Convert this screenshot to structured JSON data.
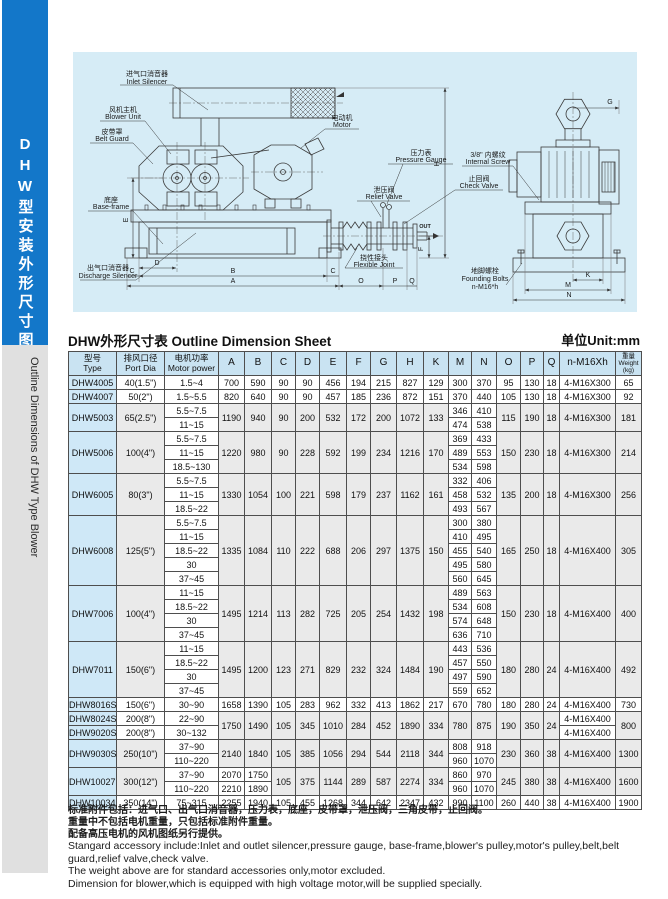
{
  "sidebar": {
    "title_cn": "DHW型安装外形尺寸图",
    "title_en": "Outline Dimensions of DHW Type Blower"
  },
  "sheet": {
    "title": "DHW外形尺寸表 Outline Dimension Sheet",
    "unit": "单位Unit:mm"
  },
  "diagram": {
    "labels": {
      "inlet_cn": "进气口消音器",
      "inlet_en": "Inlet Silencer",
      "blower_cn": "风机主机",
      "blower_en": "Blower Unit",
      "belt_cn": "皮带罩",
      "belt_en": "Belt Guard",
      "motor_cn": "电动机",
      "motor_en": "Motor",
      "gauge_cn": "压力表",
      "gauge_en": "Pressure Gauge",
      "relief_cn": "泄压阀",
      "relief_en": "Relief Valve",
      "check_cn": "止回阀",
      "check_en": "Check Valve",
      "base_cn": "底座",
      "base_en": "Base-frame",
      "discharge_cn": "出气口消音器",
      "discharge_en": "Discharge Silencer",
      "flex_cn": "挠性接头",
      "flex_en": "Flexible Joint",
      "screw_cn": "3/8\" 内螺纹",
      "screw_en": "Internal Screw",
      "bolts_cn": "地脚螺栓",
      "bolts_en": "Founding Bolts",
      "bolts_spec": "n-M16*h",
      "out": "OUT"
    },
    "dims": {
      "A": "A",
      "B": "B",
      "C": "C",
      "D": "D",
      "E": "E",
      "F": "F",
      "G": "G",
      "H": "H",
      "K": "K",
      "M": "M",
      "N": "N",
      "O": "O",
      "P": "P",
      "Q": "Q"
    }
  },
  "table": {
    "headers": [
      [
        "型号",
        "Type"
      ],
      [
        "排风口径",
        "Port Dia"
      ],
      [
        "电机功率",
        "Motor power"
      ],
      [
        "A"
      ],
      [
        "B"
      ],
      [
        "C"
      ],
      [
        "D"
      ],
      [
        "E"
      ],
      [
        "F"
      ],
      [
        "G"
      ],
      [
        "H"
      ],
      [
        "K"
      ],
      [
        "M"
      ],
      [
        "N"
      ],
      [
        "O"
      ],
      [
        "P"
      ],
      [
        "Q"
      ],
      [
        "n-M16Xh"
      ],
      [
        "重量",
        "Weight",
        "(kg)"
      ]
    ],
    "groups": [
      {
        "rows": [
          {
            "model": "DHW4005",
            "port": "40(1.5\")",
            "power": "1.5~4",
            "M": "300",
            "N": "370"
          }
        ],
        "shared": {
          "A": "700",
          "B": "590",
          "C": "90",
          "D": "90",
          "E": "456",
          "F": "194",
          "G": "215",
          "H": "827",
          "K": "129",
          "O": "95",
          "P": "130",
          "Q": "18",
          "bolts": "4-M16X300",
          "weight": "65"
        }
      },
      {
        "rows": [
          {
            "model": "DHW4007",
            "port": "50(2\")",
            "power": "1.5~5.5",
            "M": "370",
            "N": "440"
          }
        ],
        "shared": {
          "A": "820",
          "B": "640",
          "C": "90",
          "D": "90",
          "E": "457",
          "F": "185",
          "G": "236",
          "H": "872",
          "K": "151",
          "O": "105",
          "P": "130",
          "Q": "18",
          "bolts": "4-M16X300",
          "weight": "92"
        }
      },
      {
        "rows": [
          {
            "power": "5.5~7.5",
            "M": "346",
            "N": "410"
          },
          {
            "power": "11~15",
            "M": "474",
            "N": "538"
          }
        ],
        "shared": {
          "model": "DHW5003",
          "port": "65(2.5\")",
          "A": "1190",
          "B": "940",
          "C": "90",
          "D": "200",
          "E": "532",
          "F": "172",
          "G": "200",
          "H": "1072",
          "K": "133",
          "O": "115",
          "P": "190",
          "Q": "18",
          "bolts": "4-M16X300",
          "weight": "181"
        }
      },
      {
        "rows": [
          {
            "power": "5.5~7.5",
            "M": "369",
            "N": "433"
          },
          {
            "power": "11~15",
            "M": "489",
            "N": "553"
          },
          {
            "power": "18.5~130",
            "M": "534",
            "N": "598"
          }
        ],
        "shared": {
          "model": "DHW5006",
          "port": "100(4\")",
          "A": "1220",
          "B": "980",
          "C": "90",
          "D": "228",
          "E": "592",
          "F": "199",
          "G": "234",
          "H": "1216",
          "K": "170",
          "O": "150",
          "P": "230",
          "Q": "18",
          "bolts": "4-M16X300",
          "weight": "214"
        }
      },
      {
        "rows": [
          {
            "power": "5.5~7.5",
            "M": "332",
            "N": "406"
          },
          {
            "power": "11~15",
            "M": "458",
            "N": "532"
          },
          {
            "power": "18.5~22",
            "M": "493",
            "N": "567"
          }
        ],
        "shared": {
          "model": "DHW6005",
          "port": "80(3\")",
          "A": "1330",
          "B": "1054",
          "C": "100",
          "D": "221",
          "E": "598",
          "F": "179",
          "G": "237",
          "H": "1162",
          "K": "161",
          "O": "135",
          "P": "200",
          "Q": "18",
          "bolts": "4-M16X300",
          "weight": "256"
        }
      },
      {
        "rows": [
          {
            "power": "5.5~7.5",
            "M": "300",
            "N": "380"
          },
          {
            "power": "11~15",
            "M": "410",
            "N": "495"
          },
          {
            "power": "18.5~22",
            "M": "455",
            "N": "540"
          },
          {
            "power": "30",
            "M": "495",
            "N": "580"
          },
          {
            "power": "37~45",
            "M": "560",
            "N": "645"
          }
        ],
        "shared": {
          "model": "DHW6008",
          "port": "125(5\")",
          "A": "1335",
          "B": "1084",
          "C": "110",
          "D": "222",
          "E": "688",
          "F": "206",
          "G": "297",
          "H": "1375",
          "K": "150",
          "O": "165",
          "P": "250",
          "Q": "18",
          "bolts": "4-M16X400",
          "weight": "305"
        }
      },
      {
        "rows": [
          {
            "power": "11~15",
            "M": "489",
            "N": "563"
          },
          {
            "power": "18.5~22",
            "M": "534",
            "N": "608"
          },
          {
            "power": "30",
            "M": "574",
            "N": "648"
          },
          {
            "power": "37~45",
            "M": "636",
            "N": "710"
          }
        ],
        "shared": {
          "model": "DHW7006",
          "port": "100(4\")",
          "A": "1495",
          "B": "1214",
          "C": "113",
          "D": "282",
          "E": "725",
          "F": "205",
          "G": "254",
          "H": "1432",
          "K": "198",
          "O": "150",
          "P": "230",
          "Q": "18",
          "bolts": "4-M16X400",
          "weight": "400"
        }
      },
      {
        "rows": [
          {
            "power": "11~15",
            "M": "443",
            "N": "536"
          },
          {
            "power": "18.5~22",
            "M": "457",
            "N": "550"
          },
          {
            "power": "30",
            "M": "497",
            "N": "590"
          },
          {
            "power": "37~45",
            "M": "559",
            "N": "652"
          }
        ],
        "shared": {
          "model": "DHW7011",
          "port": "150(6\")",
          "A": "1495",
          "B": "1200",
          "C": "123",
          "D": "271",
          "E": "829",
          "F": "232",
          "G": "324",
          "H": "1484",
          "K": "190",
          "O": "180",
          "P": "280",
          "Q": "24",
          "bolts": "4-M16X400",
          "weight": "492"
        }
      },
      {
        "rows": [
          {
            "model": "DHW8016S",
            "port": "150(6\")",
            "power": "30~90",
            "M": "670",
            "N": "780"
          }
        ],
        "shared": {
          "A": "1658",
          "B": "1390",
          "C": "105",
          "D": "283",
          "E": "962",
          "F": "332",
          "G": "413",
          "H": "1862",
          "K": "217",
          "O": "180",
          "P": "280",
          "Q": "24",
          "bolts": "4-M16X400",
          "weight": "730"
        }
      },
      {
        "rows": [
          {
            "model": "DHW8024S",
            "port": "200(8\")",
            "power": "22~90",
            "bolts": "4-M16X400"
          },
          {
            "model": "DHW9020S",
            "port": "200(8\")",
            "power": "30~132",
            "bolts": "4-M16X400"
          }
        ],
        "shared": {
          "A": "1750",
          "B": "1490",
          "C": "105",
          "D": "345",
          "E": "1010",
          "F": "284",
          "G": "452",
          "H": "1890",
          "K": "334",
          "M": "780",
          "N": "875",
          "O": "190",
          "P": "350",
          "Q": "24",
          "weight": "800"
        }
      },
      {
        "rows": [
          {
            "power": "37~90",
            "M": "808",
            "N": "918"
          },
          {
            "power": "110~220",
            "M": "960",
            "N": "1070"
          }
        ],
        "shared": {
          "model": "DHW9030S",
          "port": "250(10\")",
          "A": "2140",
          "B": "1840",
          "C": "105",
          "D": "385",
          "E": "1056",
          "F": "294",
          "G": "544",
          "H": "2118",
          "K": "344",
          "O": "230",
          "P": "360",
          "Q": "38",
          "bolts": "4-M16X400",
          "weight": "1300"
        }
      },
      {
        "rows": [
          {
            "power": "37~90",
            "A": "2070",
            "B": "1750",
            "M": "860",
            "N": "970"
          },
          {
            "power": "110~220",
            "A": "2210",
            "B": "1890",
            "M": "960",
            "N": "1070"
          }
        ],
        "shared": {
          "model": "DHW10027S",
          "port": "300(12\")",
          "C": "105",
          "D": "375",
          "E": "1144",
          "F": "289",
          "G": "587",
          "H": "2274",
          "K": "334",
          "O": "245",
          "P": "380",
          "Q": "38",
          "bolts": "4-M16X400",
          "weight": "1600"
        }
      },
      {
        "rows": [
          {
            "model": "DHW10034S",
            "port": "350(14\")",
            "power": "75~315",
            "M": "990",
            "N": "1100"
          }
        ],
        "shared": {
          "A": "2255",
          "B": "1940",
          "C": "105",
          "D": "455",
          "E": "1268",
          "F": "344",
          "G": "642",
          "H": "2347",
          "K": "432",
          "O": "260",
          "P": "440",
          "Q": "38",
          "bolts": "4-M16X400",
          "weight": "1900"
        }
      }
    ]
  },
  "notes": [
    "标准附件包括：进气口、出气口消音器，压力表，底座，皮带罩，泄压阀，三角皮带，止回阀。",
    "重量中不包括电机重量，只包括标准附件重量。",
    "配备高压电机的风机图纸另行提供。",
    "Stangard accessory include:Inlet and outlet silencer,pressure gauge, base-frame,blower's pulley,motor's pulley,belt,belt guard,relief valve,check valve.",
    "The weight above are for standard accessories only,motor excluded.",
    "Dimension for blower,which is equipped with high voltage motor,will be supplied specially."
  ]
}
